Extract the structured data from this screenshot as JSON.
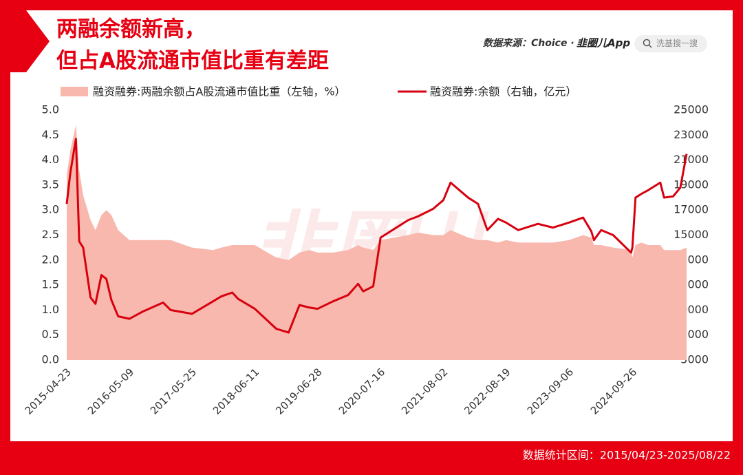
{
  "header": {
    "title_lines": [
      "两融余额新高，",
      "但占A股流通市值比重有差距"
    ],
    "source": "数据来源：Choice ·",
    "brand": "韭圈儿App",
    "search_placeholder": "洗基搜一搜"
  },
  "watermark": "韭圈儿",
  "chart_data": {
    "type": "line",
    "x": [
      "2015-04-23",
      "2015-05-15",
      "2015-06-18",
      "2015-07-08",
      "2015-08-01",
      "2015-09-15",
      "2015-10-15",
      "2015-11-20",
      "2015-12-20",
      "2016-01-20",
      "2016-03-01",
      "2016-05-09",
      "2016-08-01",
      "2016-11-30",
      "2017-01-15",
      "2017-05-25",
      "2017-09-30",
      "2017-11-20",
      "2018-01-25",
      "2018-03-01",
      "2018-06-11",
      "2018-10-20",
      "2019-01-03",
      "2019-03-10",
      "2019-05-10",
      "2019-06-28",
      "2019-10-01",
      "2019-12-31",
      "2020-03-01",
      "2020-04-01",
      "2020-06-01",
      "2020-07-16",
      "2020-12-31",
      "2021-03-01",
      "2021-06-01",
      "2021-08-02",
      "2021-09-15",
      "2021-12-31",
      "2022-03-01",
      "2022-04-27",
      "2022-07-01",
      "2022-08-19",
      "2022-11-01",
      "2023-03-01",
      "2023-06-01",
      "2023-09-06",
      "2023-12-01",
      "2024-01-20",
      "2024-02-05",
      "2024-03-20",
      "2024-06-01",
      "2024-09-18",
      "2024-09-26",
      "2024-10-15",
      "2024-11-20",
      "2025-01-01",
      "2025-03-15",
      "2025-04-07",
      "2025-06-01",
      "2025-07-15",
      "2025-08-22"
    ],
    "xlim": [
      "2015-04-23",
      "2025-08-22"
    ],
    "xticks": [
      "2015-04-23",
      "2016-05-09",
      "2017-05-25",
      "2018-06-11",
      "2019-06-28",
      "2020-07-16",
      "2021-08-02",
      "2022-08-19",
      "2023-09-06",
      "2024-09-26"
    ],
    "ylim": [
      0,
      5
    ],
    "yticks": [
      {
        "value": 0,
        "label": "0.0"
      },
      0.5,
      {
        "value": 1,
        "label": "1.0"
      },
      1.5,
      {
        "value": 2,
        "label": "2.0"
      },
      2.5,
      {
        "value": 3,
        "label": "3.0"
      },
      3.5,
      {
        "value": 4,
        "label": "4.0"
      },
      4.5,
      {
        "value": 5,
        "label": "5.0"
      }
    ],
    "y2lim": [
      5000,
      25000
    ],
    "y2ticks": [
      5000,
      7000,
      9000,
      11000,
      13000,
      15000,
      17000,
      19000,
      21000,
      23000,
      25000
    ],
    "series": [
      {
        "name": "融资融券:两融余额占A股流通市值比重（左轴，%）",
        "color": "#f8b8ad",
        "type": "area",
        "values": [
          3.7,
          4.2,
          4.7,
          3.8,
          3.3,
          2.8,
          2.6,
          2.9,
          3.0,
          2.9,
          2.6,
          2.4,
          2.4,
          2.4,
          2.4,
          2.25,
          2.2,
          2.25,
          2.3,
          2.3,
          2.3,
          2.05,
          2.0,
          2.15,
          2.2,
          2.15,
          2.15,
          2.2,
          2.3,
          2.25,
          2.2,
          2.4,
          2.5,
          2.55,
          2.5,
          2.5,
          2.6,
          2.45,
          2.4,
          2.4,
          2.35,
          2.4,
          2.35,
          2.35,
          2.35,
          2.4,
          2.5,
          2.45,
          2.3,
          2.3,
          2.25,
          2.2,
          2.05,
          2.3,
          2.35,
          2.3,
          2.3,
          2.2,
          2.2,
          2.2,
          2.25
        ]
      },
      {
        "name": "融资融券:余额（右轴，亿元）",
        "color": "#d7000f",
        "axis": "y2",
        "values": [
          17500,
          20000,
          22700,
          14500,
          14000,
          10000,
          9500,
          11800,
          11500,
          9800,
          8500,
          8300,
          8900,
          9600,
          9000,
          8700,
          9700,
          10100,
          10400,
          9900,
          9100,
          7500,
          7200,
          9400,
          9200,
          9100,
          9700,
          10200,
          11100,
          10500,
          10900,
          14800,
          16200,
          16500,
          17100,
          17800,
          19200,
          18000,
          17500,
          15400,
          16300,
          16000,
          15400,
          15900,
          15600,
          16000,
          16400,
          15300,
          14600,
          15400,
          15000,
          13600,
          14000,
          18000,
          18300,
          18600,
          19200,
          18000,
          18100,
          18800,
          21500
        ]
      }
    ]
  },
  "footer": {
    "range": "数据统计区间：2015/04/23-2025/08/22"
  }
}
